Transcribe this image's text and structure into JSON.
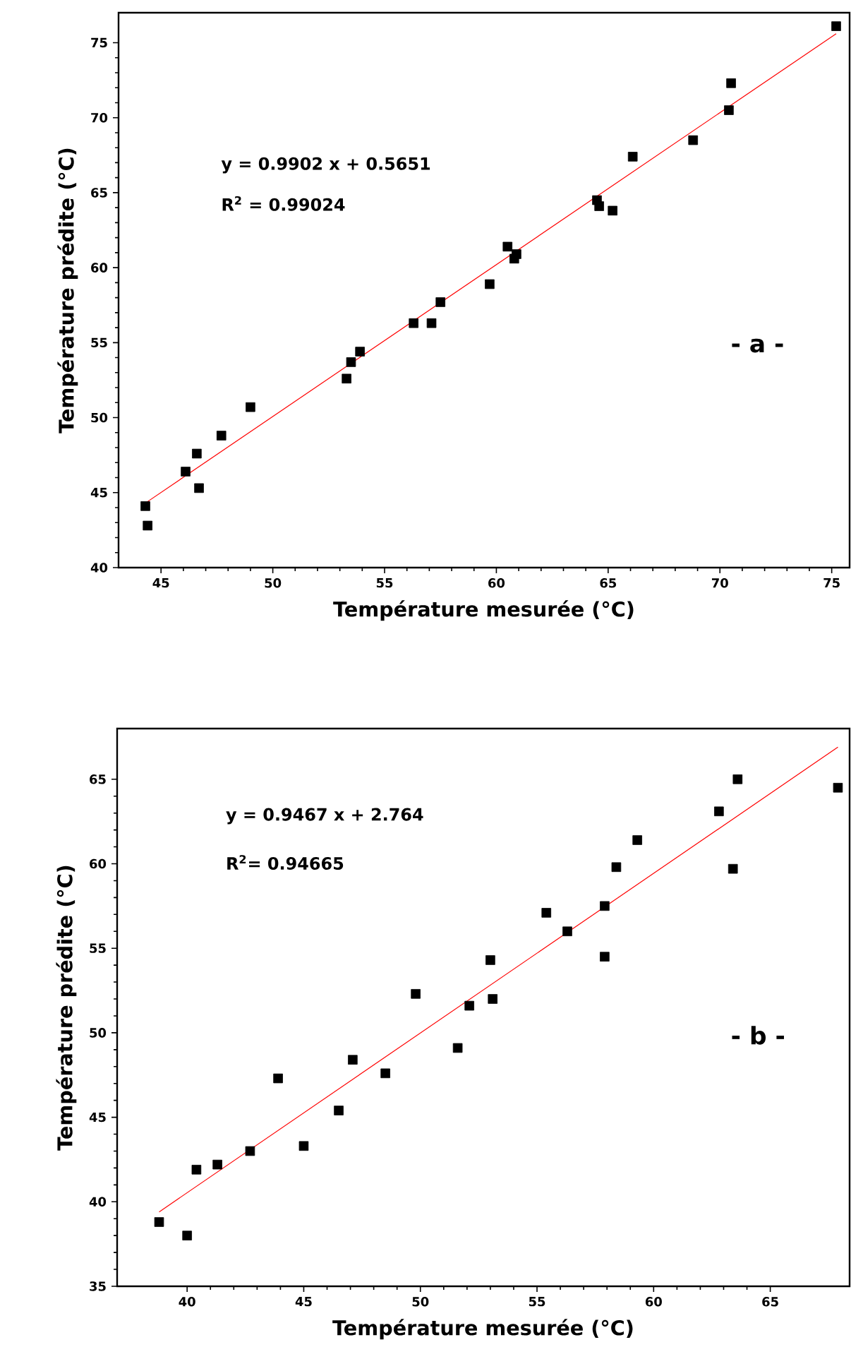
{
  "chart_data": [
    {
      "type": "scatter",
      "xlabel": "Température mesurée (°C)",
      "ylabel": "Température prédite (°C)",
      "annotations": [
        "y = 0.9902 x + 0.5651",
        "R$^{2}$ = 0.99024",
        "- a -"
      ],
      "xlim": [
        43.1,
        75.8
      ],
      "ylim": [
        40,
        77
      ],
      "xticks": [
        45,
        50,
        55,
        60,
        65,
        70,
        75
      ],
      "yticks": [
        40,
        45,
        50,
        55,
        60,
        65,
        70,
        75
      ],
      "series": [
        {
          "marker": "square",
          "color": "#000000",
          "x": [
            75.2,
            70.5,
            70.4,
            68.8,
            66.1,
            64.5,
            64.6,
            65.2,
            60.5,
            60.9,
            60.8,
            59.7,
            57.5,
            56.3,
            57.1,
            53.9,
            53.5,
            53.3,
            49.0,
            47.7,
            46.6,
            46.1,
            46.7,
            44.3,
            44.4
          ],
          "values": [
            76.1,
            72.3,
            70.5,
            68.5,
            67.4,
            64.5,
            64.1,
            63.8,
            61.4,
            60.9,
            60.6,
            58.9,
            57.7,
            56.3,
            56.3,
            54.4,
            53.7,
            52.6,
            50.7,
            48.8,
            47.6,
            46.4,
            45.3,
            44.1,
            42.8
          ]
        },
        {
          "type": "line",
          "color": "#ff0000",
          "x": [
            44.3,
            75.2
          ],
          "values": [
            44.3,
            75.6
          ]
        }
      ]
    },
    {
      "type": "scatter",
      "xlabel": "Température mesurée (°C)",
      "ylabel": "Température prédite (°C)",
      "annotations": [
        "y = 0.9467 x + 2.764",
        "R$^{2}$= 0.94665",
        "- b -"
      ],
      "xlim": [
        37.0,
        68.4
      ],
      "ylim": [
        35,
        68
      ],
      "xticks": [
        40,
        45,
        50,
        55,
        60,
        65
      ],
      "yticks": [
        35,
        40,
        45,
        50,
        55,
        60,
        65
      ],
      "series": [
        {
          "marker": "square",
          "color": "#000000",
          "x": [
            38.8,
            40.0,
            40.4,
            41.3,
            42.7,
            43.9,
            45.0,
            46.5,
            47.1,
            48.5,
            49.8,
            51.6,
            52.1,
            53.0,
            53.1,
            55.4,
            56.3,
            57.9,
            57.9,
            58.4,
            59.3,
            62.8,
            63.6,
            63.4,
            67.9
          ],
          "values": [
            38.8,
            38.0,
            41.9,
            42.2,
            43.0,
            47.3,
            43.3,
            45.4,
            48.4,
            47.6,
            52.3,
            49.1,
            51.6,
            54.3,
            52.0,
            57.1,
            56.0,
            57.5,
            54.5,
            59.8,
            61.4,
            63.1,
            65.0,
            59.7,
            64.5
          ]
        },
        {
          "type": "line",
          "color": "#ff0000",
          "x": [
            38.8,
            67.9
          ],
          "values": [
            39.4,
            66.9
          ]
        }
      ]
    }
  ]
}
